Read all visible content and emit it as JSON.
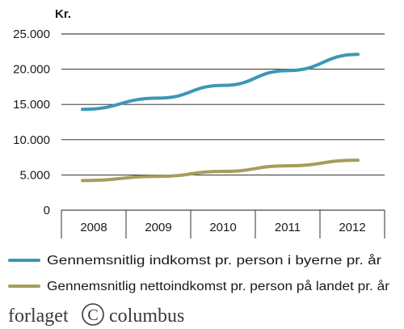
{
  "chart_data": {
    "type": "line",
    "ylabel": "Kr.",
    "x": [
      "2008",
      "2009",
      "2010",
      "2011",
      "2012"
    ],
    "ylim": [
      0,
      25000
    ],
    "yticks": [
      0,
      5000,
      10000,
      15000,
      20000,
      25000
    ],
    "ytick_labels": [
      "0",
      "5.000",
      "10.000",
      "15.000",
      "20.000",
      "25.000"
    ],
    "grid": "horizontal",
    "legend_position": "bottom",
    "series": [
      {
        "name": "Gennemsnitlig indkomst pr. person i byerne pr. år",
        "color": "#3d97b8",
        "values": [
          14300,
          15900,
          17700,
          19800,
          22100
        ]
      },
      {
        "name": "Gennemsnitlig nettoindkomst pr. person på landet pr. år",
        "color": "#a59d5a",
        "values": [
          4200,
          4800,
          5500,
          6300,
          7100
        ]
      }
    ]
  },
  "publisher": {
    "left": "forlaget",
    "right": "columbus",
    "logo_icon": "copyright-c-icon"
  }
}
